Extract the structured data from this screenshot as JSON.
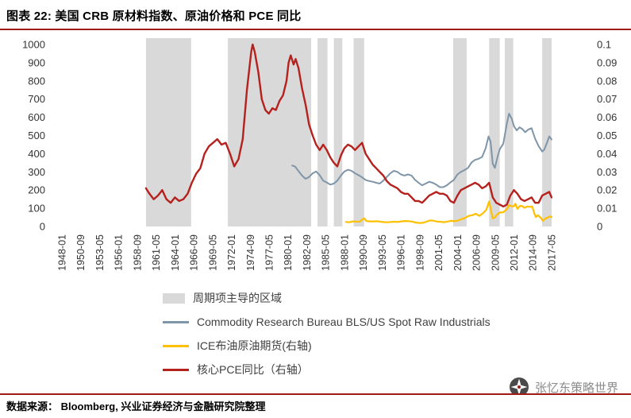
{
  "page": {
    "title": "图表 22: 美国 CRB 原材料指数、原油价格和 PCE 同比",
    "source_note": "数据来源： Bloomberg, 兴业证券经济与金融研究院整理",
    "watermark": "张忆东策略世界",
    "accent_color": "#9e1b17",
    "watermark_color": "#8c8c8c"
  },
  "chart_data": {
    "type": "line",
    "title": "美国 CRB 原材料指数、原油价格和 PCE 同比",
    "xlabel": "",
    "ylabel": "",
    "grid": false,
    "legend_position": "bottom",
    "left_axis": {
      "min": 0,
      "max": 1000,
      "tick_labels": [
        "0",
        "100",
        "200",
        "300",
        "400",
        "500",
        "600",
        "700",
        "800",
        "900",
        "1000"
      ]
    },
    "right_axis": {
      "min": 0,
      "max": 0.1,
      "tick_labels": [
        "0",
        "0.01",
        "0.02",
        "0.03",
        "0.04",
        "0.05",
        "0.06",
        "0.07",
        "0.08",
        "0.09",
        "0.1"
      ]
    },
    "x_axis": {
      "min": "1948-01",
      "max": "2017-05",
      "ticks": [
        "1948-01",
        "1950-09",
        "1953-05",
        "1956-01",
        "1958-09",
        "1961-05",
        "1964-01",
        "1966-09",
        "1969-05",
        "1972-01",
        "1974-09",
        "1977-05",
        "1980-01",
        "1982-09",
        "1985-05",
        "1988-01",
        "1990-09",
        "1993-05",
        "1996-01",
        "1998-09",
        "2001-05",
        "2004-01",
        "2006-09",
        "2009-05",
        "2012-01",
        "2014-09",
        "2017-05"
      ]
    },
    "bands": {
      "label": "周期项主导的区域",
      "color": "#d9d9d9",
      "ranges": [
        [
          1959.9,
          1966.3
        ],
        [
          1971.5,
          1983.3
        ],
        [
          1984.2,
          1985.6
        ],
        [
          1986.5,
          1987.7
        ],
        [
          1989.3,
          1990.8
        ],
        [
          2003.4,
          2005.3
        ],
        [
          2008.5,
          2010.0
        ],
        [
          2010.7,
          2011.9
        ],
        [
          2016.0,
          2017.34
        ]
      ]
    },
    "series": [
      {
        "name": "Commodity Research Bureau BLS/US Spot Raw Industrials",
        "axis": "left",
        "color": "#7f95a8",
        "points": [
          [
            1980.6,
            335
          ],
          [
            1981,
            330
          ],
          [
            1981.5,
            305
          ],
          [
            1982,
            280
          ],
          [
            1982.5,
            262
          ],
          [
            1983,
            272
          ],
          [
            1983.5,
            292
          ],
          [
            1984,
            302
          ],
          [
            1984.5,
            282
          ],
          [
            1985,
            252
          ],
          [
            1985.5,
            242
          ],
          [
            1986,
            230
          ],
          [
            1986.5,
            236
          ],
          [
            1987,
            252
          ],
          [
            1987.5,
            280
          ],
          [
            1988,
            302
          ],
          [
            1988.5,
            312
          ],
          [
            1989,
            306
          ],
          [
            1989.5,
            292
          ],
          [
            1990,
            282
          ],
          [
            1990.5,
            270
          ],
          [
            1991,
            256
          ],
          [
            1991.5,
            250
          ],
          [
            1992,
            246
          ],
          [
            1992.5,
            240
          ],
          [
            1993,
            236
          ],
          [
            1993.5,
            252
          ],
          [
            1994,
            272
          ],
          [
            1994.5,
            292
          ],
          [
            1995,
            306
          ],
          [
            1995.5,
            300
          ],
          [
            1996,
            286
          ],
          [
            1996.5,
            280
          ],
          [
            1997,
            286
          ],
          [
            1997.5,
            280
          ],
          [
            1998,
            256
          ],
          [
            1998.5,
            240
          ],
          [
            1999,
            226
          ],
          [
            1999.5,
            236
          ],
          [
            2000,
            246
          ],
          [
            2000.5,
            240
          ],
          [
            2001,
            230
          ],
          [
            2001.5,
            216
          ],
          [
            2002,
            216
          ],
          [
            2002.5,
            226
          ],
          [
            2003,
            242
          ],
          [
            2003.5,
            256
          ],
          [
            2004,
            286
          ],
          [
            2004.5,
            300
          ],
          [
            2005,
            310
          ],
          [
            2005.5,
            322
          ],
          [
            2006,
            352
          ],
          [
            2006.5,
            366
          ],
          [
            2007,
            372
          ],
          [
            2007.5,
            382
          ],
          [
            2008,
            430
          ],
          [
            2008.4,
            495
          ],
          [
            2008.7,
            465
          ],
          [
            2009,
            345
          ],
          [
            2009.3,
            322
          ],
          [
            2009.7,
            385
          ],
          [
            2010,
            425
          ],
          [
            2010.5,
            455
          ],
          [
            2011,
            565
          ],
          [
            2011.3,
            620
          ],
          [
            2011.7,
            592
          ],
          [
            2012,
            552
          ],
          [
            2012.4,
            528
          ],
          [
            2012.8,
            545
          ],
          [
            2013.2,
            535
          ],
          [
            2013.6,
            518
          ],
          [
            2014,
            532
          ],
          [
            2014.5,
            540
          ],
          [
            2015,
            482
          ],
          [
            2015.5,
            442
          ],
          [
            2016,
            412
          ],
          [
            2016.3,
            422
          ],
          [
            2016.7,
            462
          ],
          [
            2017,
            495
          ],
          [
            2017.33,
            478
          ]
        ]
      },
      {
        "name": "ICE布油原油期货(右轴)",
        "axis": "right",
        "color": "#ffc000",
        "points": [
          [
            1988.2,
            0.0025
          ],
          [
            1988.7,
            0.0023
          ],
          [
            1989.2,
            0.0028
          ],
          [
            1989.7,
            0.0026
          ],
          [
            1990.2,
            0.0027
          ],
          [
            1990.6,
            0.004
          ],
          [
            1990.8,
            0.0045
          ],
          [
            1991.1,
            0.003
          ],
          [
            1991.6,
            0.0028
          ],
          [
            1992.1,
            0.0028
          ],
          [
            1992.6,
            0.0029
          ],
          [
            1993.1,
            0.0026
          ],
          [
            1993.6,
            0.0024
          ],
          [
            1994.1,
            0.0023
          ],
          [
            1994.6,
            0.0025
          ],
          [
            1995.1,
            0.0026
          ],
          [
            1995.6,
            0.0025
          ],
          [
            1996.1,
            0.0028
          ],
          [
            1996.6,
            0.003
          ],
          [
            1997.1,
            0.0029
          ],
          [
            1997.6,
            0.0027
          ],
          [
            1998.1,
            0.0022
          ],
          [
            1998.6,
            0.0019
          ],
          [
            1999.1,
            0.002
          ],
          [
            1999.6,
            0.0026
          ],
          [
            2000.1,
            0.0033
          ],
          [
            2000.6,
            0.0032
          ],
          [
            2001.1,
            0.0027
          ],
          [
            2001.6,
            0.0026
          ],
          [
            2002.1,
            0.0023
          ],
          [
            2002.6,
            0.0027
          ],
          [
            2003.1,
            0.0031
          ],
          [
            2003.6,
            0.0029
          ],
          [
            2004.1,
            0.0033
          ],
          [
            2004.6,
            0.004
          ],
          [
            2005.1,
            0.0047
          ],
          [
            2005.6,
            0.0058
          ],
          [
            2006.1,
            0.0062
          ],
          [
            2006.6,
            0.007
          ],
          [
            2007.1,
            0.0058
          ],
          [
            2007.6,
            0.0072
          ],
          [
            2008.1,
            0.0092
          ],
          [
            2008.5,
            0.0138
          ],
          [
            2008.8,
            0.008
          ],
          [
            2009,
            0.0045
          ],
          [
            2009.3,
            0.005
          ],
          [
            2009.6,
            0.0065
          ],
          [
            2010,
            0.0077
          ],
          [
            2010.5,
            0.0078
          ],
          [
            2011,
            0.0095
          ],
          [
            2011.3,
            0.0117
          ],
          [
            2011.6,
            0.0112
          ],
          [
            2012,
            0.0111
          ],
          [
            2012.2,
            0.0125
          ],
          [
            2012.5,
            0.0097
          ],
          [
            2012.8,
            0.0112
          ],
          [
            2013.1,
            0.0113
          ],
          [
            2013.5,
            0.0103
          ],
          [
            2013.9,
            0.011
          ],
          [
            2014.3,
            0.0108
          ],
          [
            2014.6,
            0.011
          ],
          [
            2014.9,
            0.007
          ],
          [
            2015.1,
            0.0052
          ],
          [
            2015.4,
            0.0062
          ],
          [
            2015.8,
            0.0048
          ],
          [
            2016.1,
            0.0031
          ],
          [
            2016.4,
            0.0042
          ],
          [
            2016.8,
            0.005
          ],
          [
            2017.1,
            0.0055
          ],
          [
            2017.33,
            0.0052
          ]
        ]
      },
      {
        "name": "核心PCE同比（右轴）",
        "axis": "right",
        "color": "#b5211d",
        "points": [
          [
            1959.9,
            0.021
          ],
          [
            1960.4,
            0.018
          ],
          [
            1961,
            0.015
          ],
          [
            1961.6,
            0.017
          ],
          [
            1962.2,
            0.02
          ],
          [
            1962.8,
            0.015
          ],
          [
            1963.4,
            0.013
          ],
          [
            1964,
            0.016
          ],
          [
            1964.6,
            0.014
          ],
          [
            1965.2,
            0.015
          ],
          [
            1965.8,
            0.018
          ],
          [
            1966.4,
            0.024
          ],
          [
            1967,
            0.029
          ],
          [
            1967.6,
            0.032
          ],
          [
            1968.2,
            0.04
          ],
          [
            1968.8,
            0.044
          ],
          [
            1969.4,
            0.046
          ],
          [
            1970,
            0.048
          ],
          [
            1970.6,
            0.045
          ],
          [
            1971.2,
            0.046
          ],
          [
            1971.8,
            0.04
          ],
          [
            1972.4,
            0.033
          ],
          [
            1973,
            0.037
          ],
          [
            1973.6,
            0.048
          ],
          [
            1974.2,
            0.075
          ],
          [
            1974.8,
            0.096
          ],
          [
            1975,
            0.1
          ],
          [
            1975.3,
            0.096
          ],
          [
            1975.8,
            0.085
          ],
          [
            1976.3,
            0.07
          ],
          [
            1976.8,
            0.064
          ],
          [
            1977.3,
            0.062
          ],
          [
            1977.8,
            0.065
          ],
          [
            1978.3,
            0.064
          ],
          [
            1978.8,
            0.069
          ],
          [
            1979.3,
            0.072
          ],
          [
            1979.8,
            0.08
          ],
          [
            1980.1,
            0.09
          ],
          [
            1980.4,
            0.094
          ],
          [
            1980.8,
            0.089
          ],
          [
            1981.1,
            0.092
          ],
          [
            1981.5,
            0.087
          ],
          [
            1982,
            0.076
          ],
          [
            1982.5,
            0.067
          ],
          [
            1983,
            0.056
          ],
          [
            1983.5,
            0.05
          ],
          [
            1984,
            0.045
          ],
          [
            1984.5,
            0.042
          ],
          [
            1985,
            0.045
          ],
          [
            1985.5,
            0.042
          ],
          [
            1986,
            0.038
          ],
          [
            1986.5,
            0.035
          ],
          [
            1987,
            0.033
          ],
          [
            1987.5,
            0.039
          ],
          [
            1988,
            0.043
          ],
          [
            1988.5,
            0.045
          ],
          [
            1989,
            0.044
          ],
          [
            1989.5,
            0.042
          ],
          [
            1990,
            0.044
          ],
          [
            1990.5,
            0.046
          ],
          [
            1991,
            0.04
          ],
          [
            1991.5,
            0.037
          ],
          [
            1992,
            0.034
          ],
          [
            1992.5,
            0.032
          ],
          [
            1993,
            0.03
          ],
          [
            1993.5,
            0.028
          ],
          [
            1994,
            0.025
          ],
          [
            1994.5,
            0.023
          ],
          [
            1995,
            0.022
          ],
          [
            1995.5,
            0.021
          ],
          [
            1996,
            0.019
          ],
          [
            1996.5,
            0.018
          ],
          [
            1997,
            0.018
          ],
          [
            1997.5,
            0.016
          ],
          [
            1998,
            0.014
          ],
          [
            1998.5,
            0.014
          ],
          [
            1999,
            0.013
          ],
          [
            1999.5,
            0.015
          ],
          [
            2000,
            0.017
          ],
          [
            2000.5,
            0.018
          ],
          [
            2001,
            0.019
          ],
          [
            2001.5,
            0.018
          ],
          [
            2002,
            0.018
          ],
          [
            2002.5,
            0.017
          ],
          [
            2003,
            0.014
          ],
          [
            2003.5,
            0.013
          ],
          [
            2004,
            0.017
          ],
          [
            2004.5,
            0.02
          ],
          [
            2005,
            0.021
          ],
          [
            2005.5,
            0.022
          ],
          [
            2006,
            0.023
          ],
          [
            2006.5,
            0.024
          ],
          [
            2007,
            0.023
          ],
          [
            2007.5,
            0.021
          ],
          [
            2008,
            0.022
          ],
          [
            2008.5,
            0.024
          ],
          [
            2009,
            0.016
          ],
          [
            2009.5,
            0.013
          ],
          [
            2010,
            0.012
          ],
          [
            2010.5,
            0.011
          ],
          [
            2011,
            0.012
          ],
          [
            2011.5,
            0.017
          ],
          [
            2012,
            0.02
          ],
          [
            2012.5,
            0.018
          ],
          [
            2013,
            0.015
          ],
          [
            2013.5,
            0.014
          ],
          [
            2014,
            0.015
          ],
          [
            2014.5,
            0.016
          ],
          [
            2015,
            0.013
          ],
          [
            2015.5,
            0.013
          ],
          [
            2016,
            0.017
          ],
          [
            2016.5,
            0.018
          ],
          [
            2017,
            0.019
          ],
          [
            2017.33,
            0.016
          ]
        ]
      }
    ],
    "legend": [
      {
        "label": "周期项主导的区域",
        "swatch": "band",
        "color": "#d9d9d9"
      },
      {
        "label": "Commodity Research Bureau BLS/US Spot Raw Industrials",
        "swatch": "line",
        "color": "#7f95a8"
      },
      {
        "label": "ICE布油原油期货(右轴)",
        "swatch": "line",
        "color": "#ffc000"
      },
      {
        "label": "核心PCE同比（右轴）",
        "swatch": "line",
        "color": "#b5211d"
      }
    ]
  }
}
